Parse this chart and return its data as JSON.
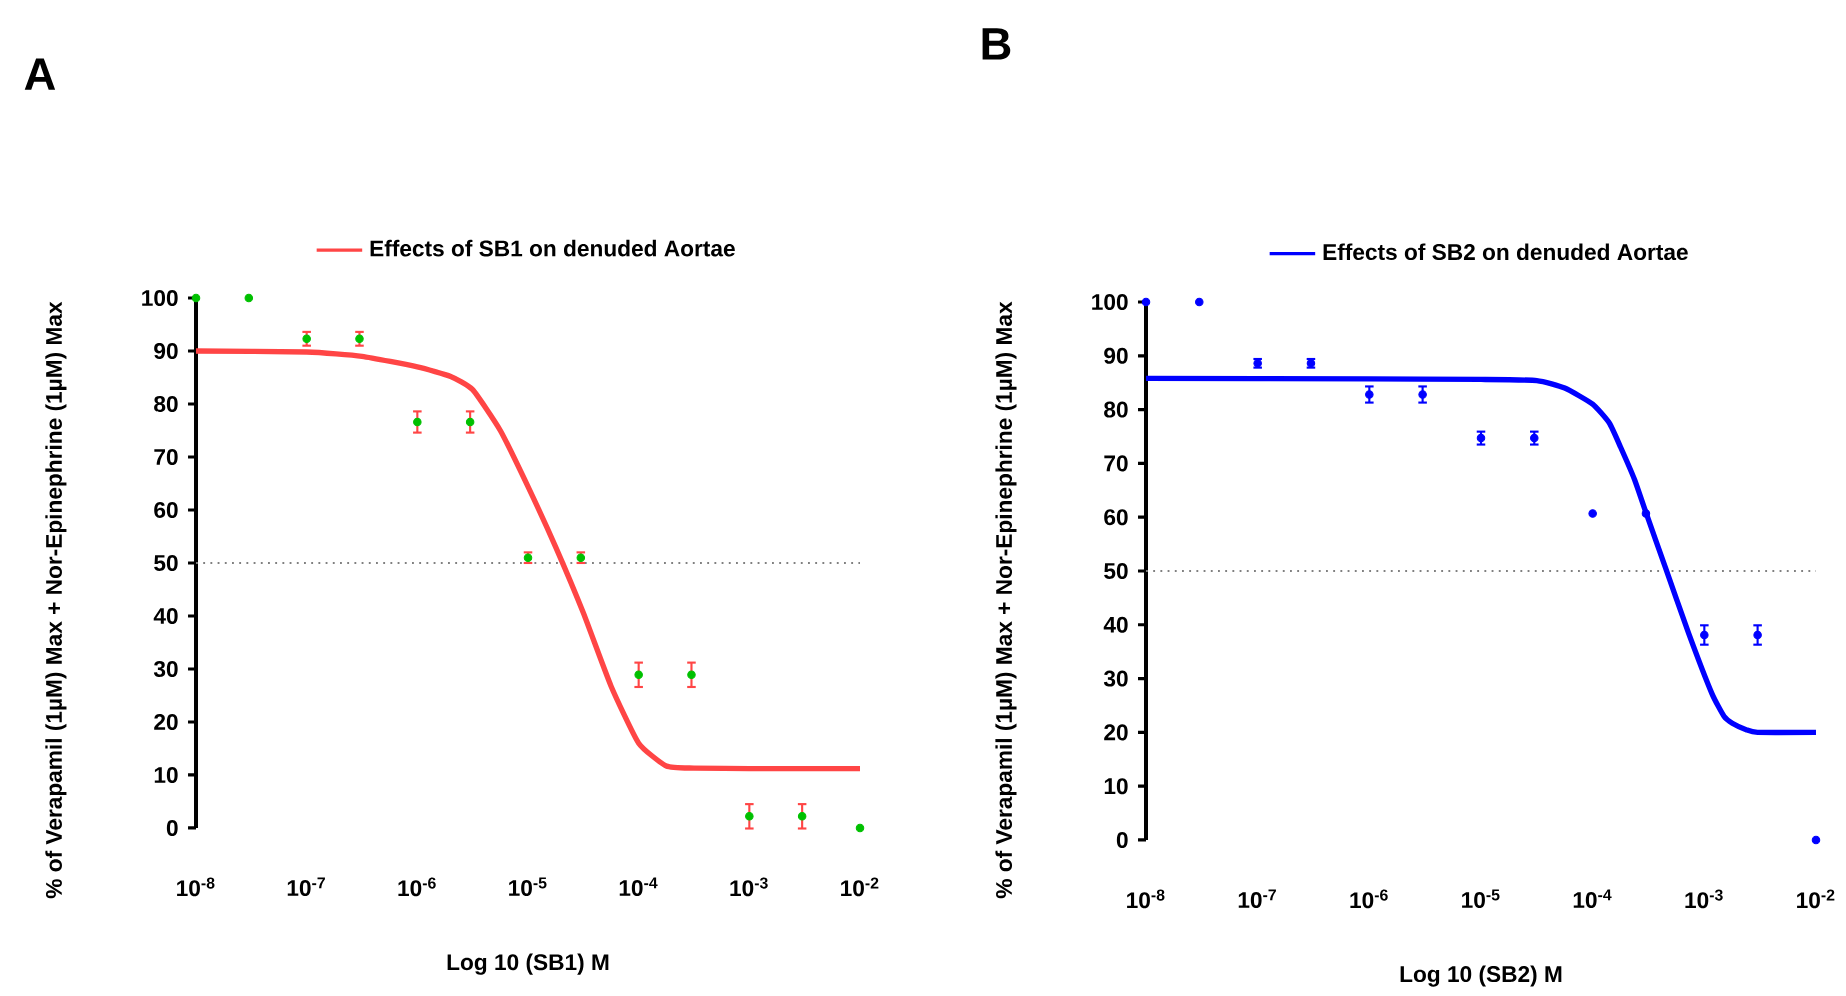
{
  "chart_data": [
    {
      "type": "scatter",
      "title": "A",
      "xlabel": "Log 10 (SB1) M",
      "ylabel": "% of Verapamil (1µM) Max + Nor-Epinephrine (1µM) Max",
      "log": "x",
      "legend": "top",
      "xlim": [
        1e-08,
        0.01
      ],
      "ylim": [
        0,
        100
      ],
      "xticks": [
        {
          "value": 1e-08,
          "label": "10$^{-8}$"
        },
        {
          "value": 1e-07,
          "label": "10$^{-7}$"
        },
        {
          "value": 1e-06,
          "label": "10$^{-6}$"
        },
        {
          "value": 1e-05,
          "label": "10$^{-5}$"
        },
        {
          "value": 0.0001,
          "label": "10$^{-4}$"
        },
        {
          "value": 0.001,
          "label": "10$^{-3}$"
        },
        {
          "value": 0.01,
          "label": "10$^{-2}$"
        }
      ],
      "yticks": [
        0,
        10,
        20,
        30,
        40,
        50,
        60,
        70,
        80,
        90,
        100
      ],
      "ref_lines": [
        {
          "axis": "y",
          "value": 50,
          "color": "#808080",
          "line_style": "dotted"
        }
      ],
      "series": [
        {
          "marker": "circle",
          "color": "#00c000",
          "x": [
            1e-08,
            3e-08,
            1e-07,
            3e-07,
            1e-06,
            3e-06,
            1e-05,
            3e-05,
            0.0001,
            0.0003,
            0.001,
            0.003,
            0.01
          ],
          "values": [
            100,
            100,
            92.3,
            92.3,
            76.6,
            76.6,
            51,
            51,
            28.9,
            28.9,
            2.2,
            2.2,
            0
          ],
          "errors": [
            null,
            null,
            1.3,
            1.3,
            2,
            2,
            1,
            1,
            2.3,
            2.3,
            2.3,
            2.3,
            null
          ]
        },
        {
          "type": "line",
          "name": "Effects of SB1 on denuded Aortae",
          "color": "#ff4545",
          "x": [
            1e-08,
            1e-07,
            3.16e-07,
            1e-06,
            2e-06,
            3.16e-06,
            5.62e-06,
            1e-05,
            1.78e-05,
            3.16e-05,
            5.62e-05,
            0.0001,
            0.000178,
            0.000316,
            0.001,
            0.01
          ],
          "values": [
            90,
            89.8,
            89,
            87,
            85.2,
            82.7,
            75,
            64.4,
            53,
            40.6,
            26.8,
            16,
            11.7,
            11.3,
            11.2,
            11.2
          ]
        }
      ]
    },
    {
      "type": "scatter",
      "title": "B",
      "xlabel": "Log 10 (SB2) M",
      "ylabel": "% of Verapamil (1µM) Max + Nor-Epinephrine (1µM) Max",
      "log": "x",
      "legend": "top",
      "xlim": [
        1e-08,
        0.01
      ],
      "ylim": [
        0,
        100
      ],
      "xticks": [
        {
          "value": 1e-08,
          "label": "10$^{-8}$"
        },
        {
          "value": 1e-07,
          "label": "10$^{-7}$"
        },
        {
          "value": 1e-06,
          "label": "10$^{-6}$"
        },
        {
          "value": 1e-05,
          "label": "10$^{-5}$"
        },
        {
          "value": 0.0001,
          "label": "10$^{-4}$"
        },
        {
          "value": 0.001,
          "label": "10$^{-3}$"
        },
        {
          "value": 0.01,
          "label": "10$^{-2}$"
        }
      ],
      "yticks": [
        0,
        10,
        20,
        30,
        40,
        50,
        60,
        70,
        80,
        90,
        100
      ],
      "ref_lines": [
        {
          "axis": "y",
          "value": 50,
          "color": "#808080",
          "line_style": "dotted"
        }
      ],
      "series": [
        {
          "marker": "circle",
          "color": "#0000ff",
          "x": [
            1e-08,
            3e-08,
            1e-07,
            3e-07,
            1e-06,
            3e-06,
            1e-05,
            3e-05,
            0.0001,
            0.0003,
            0.001,
            0.003,
            0.01
          ],
          "values": [
            100,
            100,
            88.6,
            88.6,
            82.8,
            82.8,
            74.7,
            74.7,
            60.7,
            60.7,
            38.1,
            38.1,
            0
          ],
          "errors": [
            null,
            null,
            0.8,
            0.8,
            1.5,
            1.5,
            1.2,
            1.2,
            null,
            null,
            1.8,
            1.8,
            null
          ]
        },
        {
          "type": "line",
          "name": "Effects of SB2 on denuded Aortae",
          "color": "#0000ff",
          "x": [
            1e-08,
            1e-06,
            1e-05,
            3.16e-05,
            5.62e-05,
            0.0001,
            0.000141,
            0.000178,
            0.000237,
            0.000295,
            0.000447,
            0.000724,
            0.00117,
            0.0015,
            0.00178,
            0.00237,
            0.003,
            0.01
          ],
          "values": [
            85.8,
            85.7,
            85.6,
            85.4,
            84,
            81,
            77.5,
            73,
            67,
            61.3,
            50.7,
            38.4,
            27.2,
            23,
            21.7,
            20.5,
            20,
            20
          ]
        }
      ]
    }
  ]
}
